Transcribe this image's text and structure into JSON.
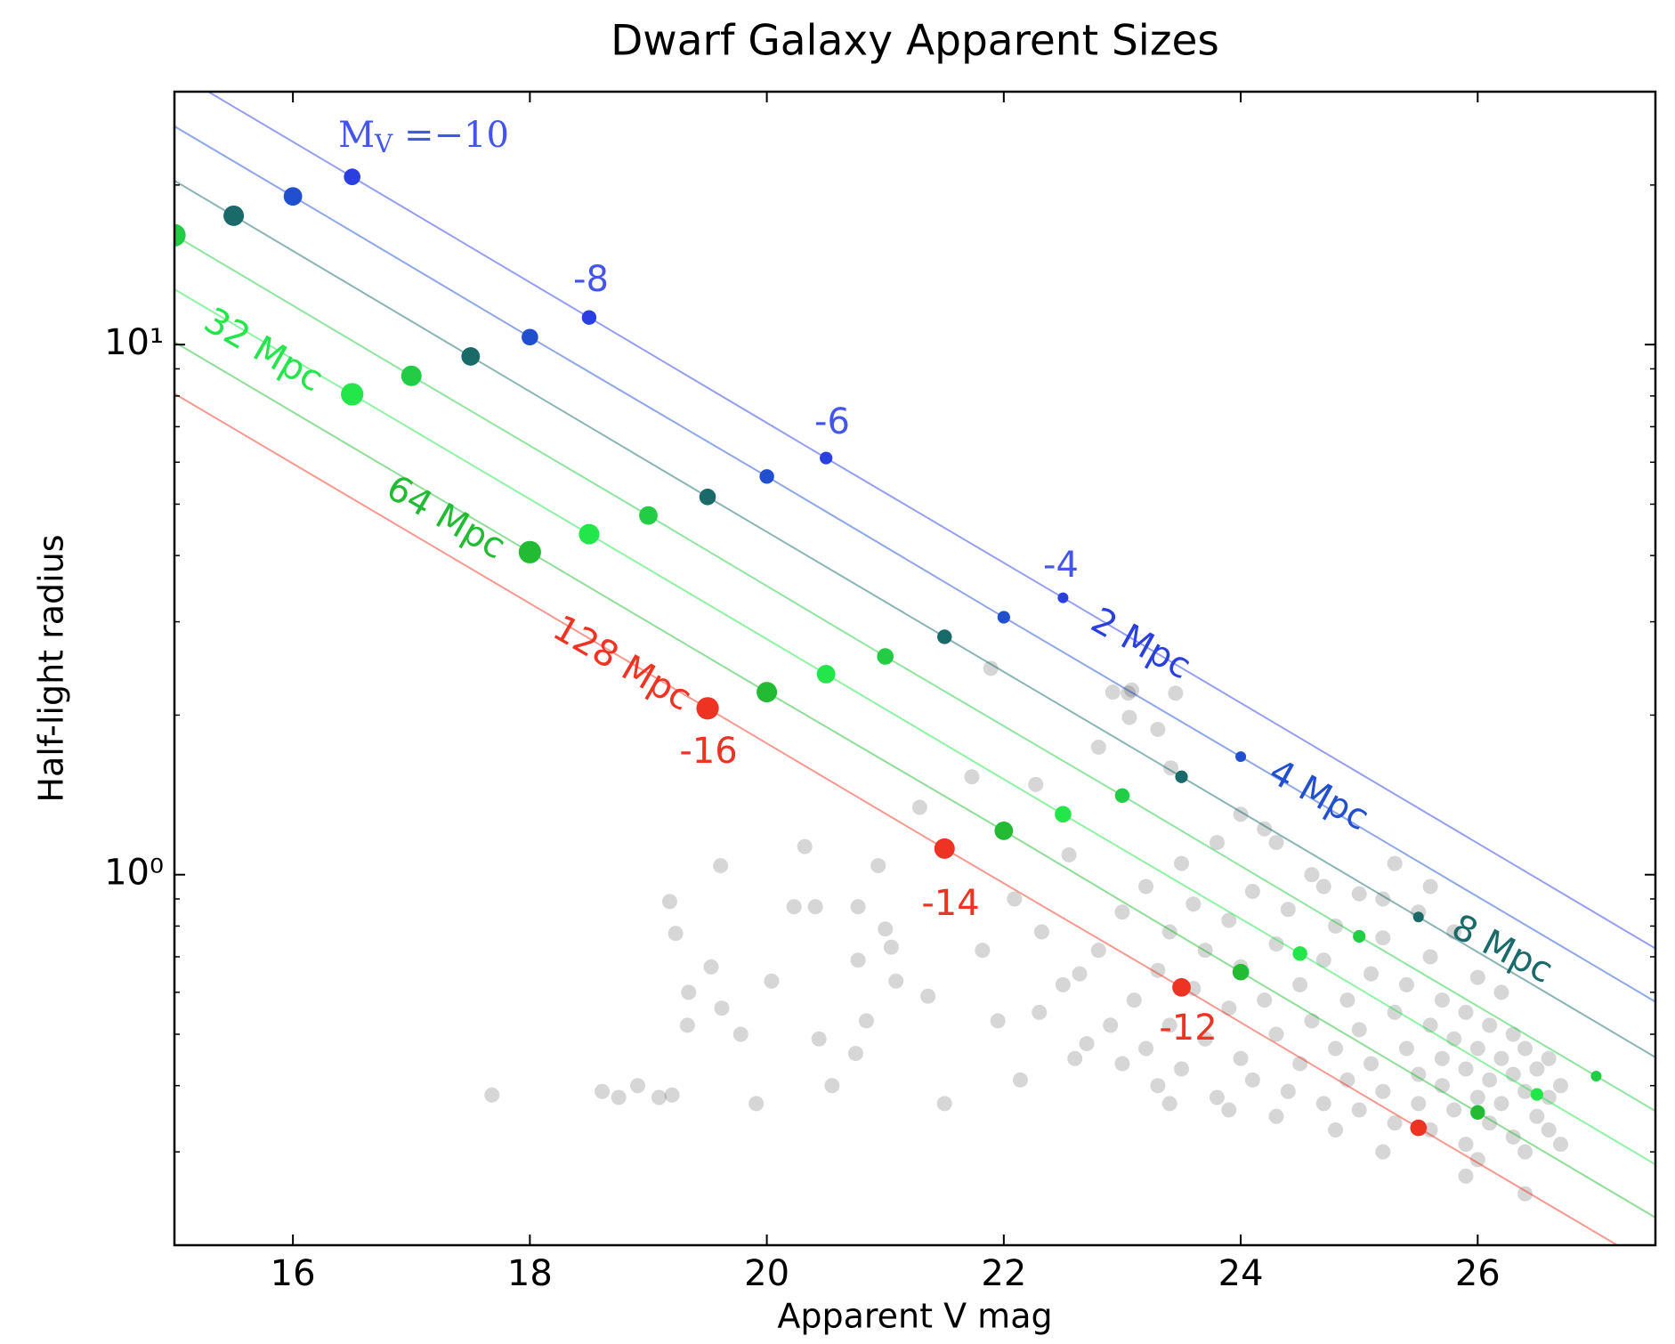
{
  "chart_data": {
    "type": "scatter",
    "title": "Dwarf Galaxy Apparent Sizes",
    "xlabel": "Apparent V mag",
    "ylabel": "Half-light radius",
    "xlim": [
      15,
      27.5
    ],
    "xticks": [
      16,
      18,
      20,
      22,
      24,
      26
    ],
    "ylim": [
      0.2,
      30
    ],
    "log_y": true,
    "yticks": [
      {
        "value": 1,
        "label": "10⁰"
      },
      {
        "value": 10,
        "label": "10¹"
      }
    ],
    "yminor_ticks": [
      0.2,
      0.3,
      0.4,
      0.5,
      0.6,
      0.7,
      0.8,
      0.9,
      2,
      3,
      4,
      5,
      6,
      7,
      8,
      9,
      20,
      30
    ],
    "points": {
      "color": "#000000",
      "alpha": 0.16,
      "x": [
        17.68,
        18.61,
        18.75,
        18.91,
        19.09,
        19.2,
        19.18,
        19.23,
        19.34,
        19.33,
        19.53,
        19.62,
        19.61,
        19.78,
        19.91,
        20.04,
        20.23,
        20.32,
        20.41,
        20.44,
        20.55,
        20.77,
        20.77,
        20.75,
        20.84,
        20.94,
        21.0,
        21.05,
        21.09,
        21.29,
        21.36,
        21.5,
        21.73,
        21.82,
        21.89,
        21.95,
        22.09,
        22.14,
        22.27,
        22.32,
        22.55,
        22.64,
        22.8,
        22.92,
        23.05,
        23.06,
        23.08,
        23.3,
        23.45,
        23.41,
        22.3,
        22.5,
        22.6,
        22.7,
        22.8,
        22.9,
        23.0,
        23.0,
        23.1,
        23.2,
        23.2,
        23.3,
        23.3,
        23.4,
        23.4,
        23.5,
        23.5,
        23.6,
        23.6,
        23.7,
        23.7,
        23.8,
        23.8,
        23.9,
        23.9,
        24.0,
        24.0,
        24.1,
        24.1,
        24.2,
        24.2,
        24.3,
        24.3,
        24.4,
        24.4,
        24.5,
        24.5,
        24.6,
        24.6,
        24.7,
        24.7,
        24.8,
        24.8,
        24.9,
        24.9,
        25.0,
        25.0,
        25.0,
        25.1,
        25.1,
        25.2,
        25.2,
        25.3,
        25.3,
        25.3,
        25.4,
        25.4,
        25.5,
        25.5,
        25.5,
        25.6,
        25.6,
        25.6,
        25.7,
        25.7,
        25.7,
        25.8,
        25.8,
        25.8,
        25.9,
        25.9,
        25.9,
        26.0,
        26.0,
        26.0,
        26.0,
        26.1,
        26.1,
        26.1,
        26.2,
        26.2,
        26.2,
        26.3,
        26.3,
        26.3,
        26.4,
        26.4,
        26.4,
        26.5,
        26.5,
        26.6,
        26.6,
        26.6,
        26.7,
        26.7,
        25.2,
        24.8,
        24.3,
        23.9,
        23.4,
        25.9,
        26.4,
        24.3,
        24.7,
        25.2,
        25.6,
        24.0
      ],
      "y": [
        0.384,
        0.39,
        0.38,
        0.4,
        0.38,
        0.384,
        0.89,
        0.775,
        0.6,
        0.52,
        0.67,
        0.56,
        1.04,
        0.5,
        0.37,
        0.63,
        0.87,
        1.13,
        0.87,
        0.49,
        0.4,
        0.87,
        0.69,
        0.46,
        0.53,
        1.04,
        0.79,
        0.73,
        0.63,
        1.34,
        0.59,
        0.37,
        1.53,
        0.72,
        2.45,
        0.53,
        0.9,
        0.41,
        1.48,
        0.78,
        1.09,
        0.65,
        1.74,
        2.21,
        2.2,
        1.98,
        2.23,
        1.88,
        2.2,
        1.59,
        0.55,
        0.62,
        0.45,
        0.48,
        0.72,
        0.52,
        0.44,
        0.85,
        0.58,
        0.95,
        0.47,
        0.66,
        0.4,
        0.78,
        0.52,
        1.05,
        0.43,
        0.61,
        0.88,
        0.49,
        0.72,
        0.38,
        1.15,
        0.56,
        0.82,
        0.45,
        0.67,
        0.93,
        0.41,
        0.58,
        1.22,
        0.5,
        0.74,
        0.39,
        0.86,
        0.62,
        0.44,
        1.0,
        0.53,
        0.37,
        0.69,
        0.47,
        0.8,
        0.41,
        0.58,
        0.92,
        0.36,
        0.51,
        0.65,
        0.44,
        0.39,
        0.76,
        0.55,
        1.05,
        0.34,
        0.47,
        0.62,
        0.42,
        0.85,
        0.37,
        0.52,
        0.33,
        0.7,
        0.45,
        0.4,
        0.58,
        0.36,
        0.49,
        0.78,
        0.43,
        0.31,
        0.55,
        0.38,
        0.47,
        0.64,
        0.29,
        0.41,
        0.52,
        0.34,
        0.45,
        0.37,
        0.6,
        0.32,
        0.42,
        0.5,
        0.39,
        0.3,
        0.47,
        0.35,
        0.43,
        0.38,
        0.33,
        0.45,
        0.31,
        0.4,
        0.3,
        0.33,
        0.35,
        0.36,
        0.37,
        0.27,
        0.25,
        1.15,
        0.95,
        0.9,
        0.95,
        1.3
      ]
    },
    "series": [
      {
        "name": "2 Mpc",
        "color": "#2a3fe0",
        "x": [
          16.5,
          18.5,
          20.5,
          22.5
        ],
        "values": [
          20.72,
          11.25,
          6.11,
          3.33
        ],
        "mv": [
          -10,
          -8,
          -6,
          -4
        ]
      },
      {
        "name": "4 Mpc",
        "color": "#2050d0",
        "x": [
          16.0,
          18.0,
          20.0,
          22.0,
          24.0
        ],
        "values": [
          19.04,
          10.33,
          5.64,
          3.06,
          1.67
        ],
        "mv": [
          -12,
          -10,
          -8,
          -6,
          -4
        ]
      },
      {
        "name": "8 Mpc",
        "color": "#1a6a6a",
        "x": [
          15.5,
          17.5,
          19.5,
          21.5,
          23.5,
          25.5
        ],
        "values": [
          17.5,
          9.5,
          5.16,
          2.81,
          1.53,
          0.832
        ],
        "mv": [
          -14,
          -12,
          -10,
          -8,
          -6,
          -4
        ]
      },
      {
        "color": "#22cc44",
        "x": [
          15.0,
          17.0,
          19.0,
          21.0,
          23.0,
          25.0,
          27.0
        ],
        "values": [
          16.08,
          8.73,
          4.76,
          2.58,
          1.41,
          0.765,
          0.417
        ],
        "mv": [
          -16,
          -14,
          -12,
          -10,
          -8,
          -6,
          -4
        ]
      },
      {
        "name": "32 Mpc",
        "color": "#22e64a",
        "x": [
          16.5,
          18.5,
          20.5,
          22.5,
          24.5,
          26.5
        ],
        "values": [
          8.06,
          4.39,
          2.39,
          1.3,
          0.71,
          0.385
        ],
        "mv": [
          -16,
          -14,
          -12,
          -10,
          -8,
          -6
        ]
      },
      {
        "name": "64 Mpc",
        "color": "#22bb33",
        "x": [
          18.0,
          20.0,
          22.0,
          24.0,
          26.0
        ],
        "values": [
          4.06,
          2.21,
          1.21,
          0.655,
          0.356
        ],
        "mv": [
          -16,
          -14,
          -12,
          -10,
          -8
        ]
      },
      {
        "name": "128 Mpc",
        "color": "#ee3322",
        "x": [
          19.5,
          21.5,
          23.5,
          25.5
        ],
        "values": [
          2.06,
          1.12,
          0.613,
          0.333
        ],
        "mv": [
          -16,
          -14,
          -12,
          -10
        ]
      }
    ],
    "mv_label": {
      "text": "M",
      "sub": "V",
      "tail": " =−10",
      "color": "#4455ee"
    },
    "annotations": [
      {
        "text": "-8",
        "color": "#4455ee"
      },
      {
        "text": "-6",
        "color": "#4455ee"
      },
      {
        "text": "-4",
        "color": "#4455ee"
      },
      {
        "text": "-16",
        "color": "#ee3322"
      },
      {
        "text": "-14",
        "color": "#ee3322"
      },
      {
        "text": "-12",
        "color": "#ee3322"
      }
    ]
  }
}
